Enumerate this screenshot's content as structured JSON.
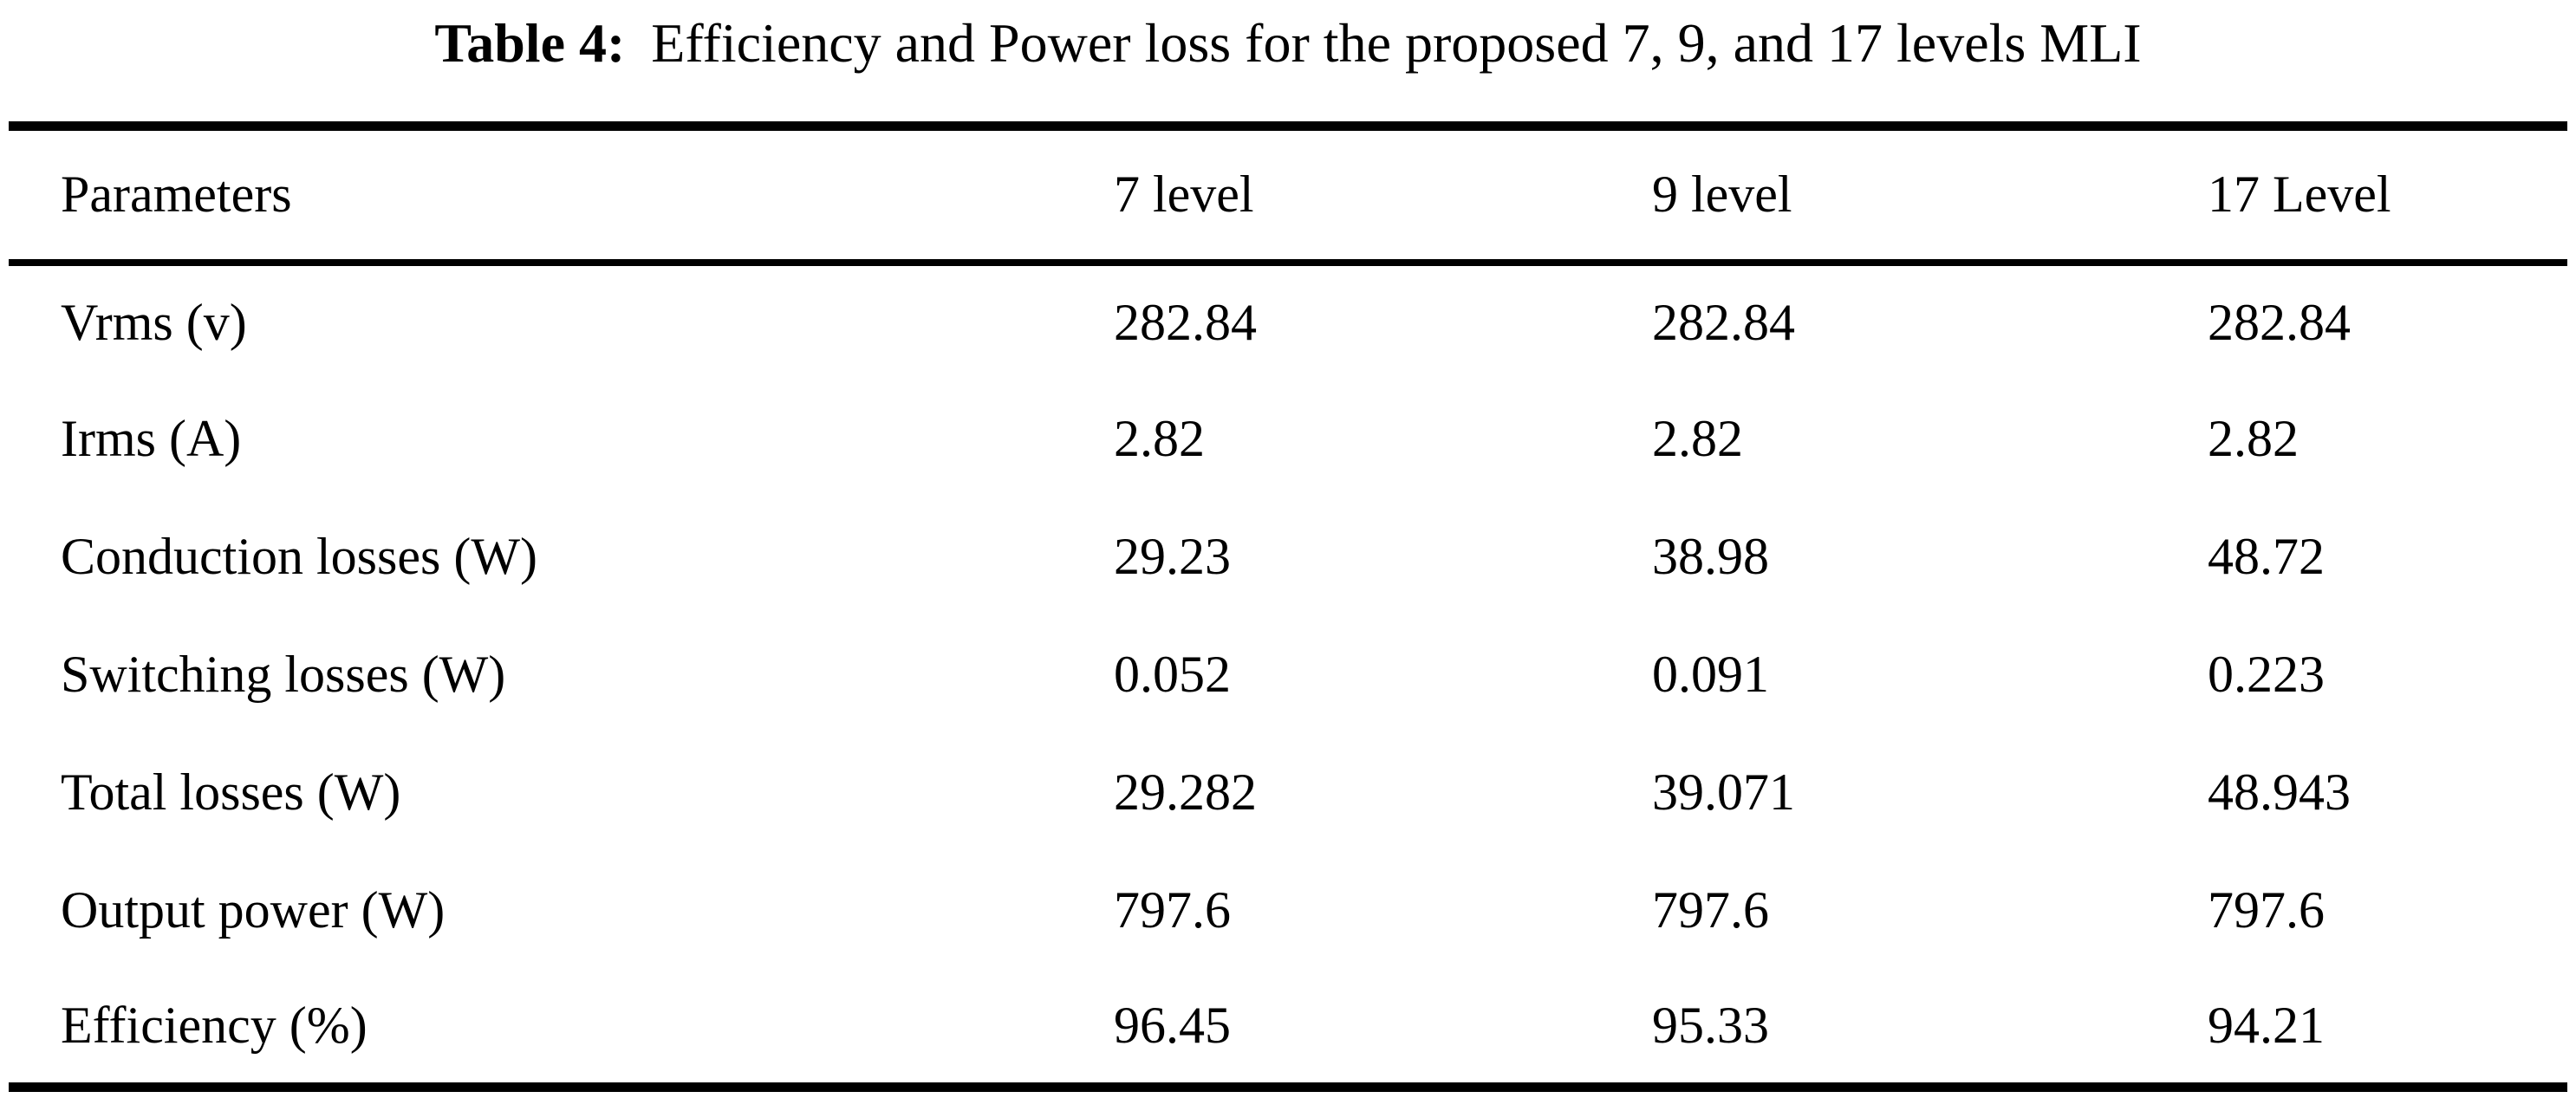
{
  "caption": {
    "label": "Table 4:",
    "text": "Efficiency and Power loss for the proposed 7, 9, and 17 levels MLI"
  },
  "table": {
    "columns": [
      "Parameters",
      "7 level",
      "9 level",
      "17 Level"
    ],
    "rows": [
      {
        "parameter": "Vrms (v)",
        "values": [
          "282.84",
          "282.84",
          "282.84"
        ]
      },
      {
        "parameter": "Irms (A)",
        "values": [
          "2.82",
          "2.82",
          "2.82"
        ]
      },
      {
        "parameter": "Conduction losses (W)",
        "values": [
          "29.23",
          "38.98",
          "48.72"
        ]
      },
      {
        "parameter": "Switching losses (W)",
        "values": [
          "0.052",
          "0.091",
          "0.223"
        ]
      },
      {
        "parameter": "Total losses (W)",
        "values": [
          "29.282",
          "39.071",
          "48.943"
        ]
      },
      {
        "parameter": "Output power (W)",
        "values": [
          "797.6",
          "797.6",
          "797.6"
        ]
      },
      {
        "parameter": "Efficiency (%)",
        "values": [
          "96.45",
          "95.33",
          "94.21"
        ]
      }
    ]
  },
  "chart_data": {
    "type": "table",
    "title": "Table 4: Efficiency and Power loss for the proposed 7, 9, and 17 levels MLI",
    "categories": [
      "7 level",
      "9 level",
      "17 Level"
    ],
    "series": [
      {
        "name": "Vrms (v)",
        "values": [
          282.84,
          282.84,
          282.84
        ]
      },
      {
        "name": "Irms (A)",
        "values": [
          2.82,
          2.82,
          2.82
        ]
      },
      {
        "name": "Conduction losses (W)",
        "values": [
          29.23,
          38.98,
          48.72
        ]
      },
      {
        "name": "Switching losses (W)",
        "values": [
          0.052,
          0.091,
          0.223
        ]
      },
      {
        "name": "Total losses (W)",
        "values": [
          29.282,
          39.071,
          48.943
        ]
      },
      {
        "name": "Output power (W)",
        "values": [
          797.6,
          797.6,
          797.6
        ]
      },
      {
        "name": "Efficiency (%)",
        "values": [
          96.45,
          95.33,
          94.21
        ]
      }
    ]
  },
  "colors": {
    "text": "#000000",
    "background": "#ffffff",
    "rule": "#000000"
  }
}
